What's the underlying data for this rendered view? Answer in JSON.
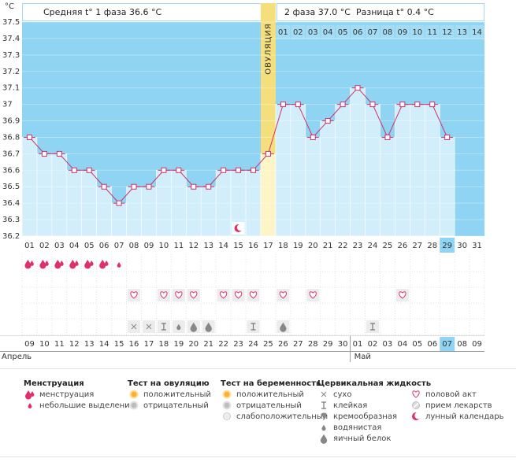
{
  "unit": "°C",
  "header": {
    "phase1": "Средняя t° 1 фаза 36.6 °C",
    "phase2": "2 фаза 37.0 °C",
    "difference": "Разница t° 0.4 °C"
  },
  "chart_data": {
    "type": "line",
    "categories": [
      "01",
      "02",
      "03",
      "04",
      "05",
      "06",
      "07",
      "08",
      "09",
      "10",
      "11",
      "12",
      "13",
      "14",
      "15",
      "16",
      "17",
      "18",
      "19",
      "20",
      "21",
      "22",
      "23",
      "24",
      "25",
      "26",
      "27",
      "28",
      "29",
      "30",
      "31"
    ],
    "values": [
      36.8,
      36.7,
      36.7,
      36.6,
      36.6,
      36.5,
      36.4,
      36.5,
      36.5,
      36.6,
      36.6,
      36.5,
      36.5,
      36.6,
      36.6,
      36.6,
      36.7,
      37.0,
      37.0,
      36.8,
      36.9,
      37.0,
      37.1,
      37.0,
      36.8,
      37.0,
      37.0,
      37.0,
      36.8,
      null,
      null
    ],
    "color": "#d0306a",
    "ylim": [
      36.2,
      37.5
    ],
    "yticks": [
      36.2,
      36.3,
      36.4,
      36.5,
      36.6,
      36.7,
      36.8,
      36.9,
      37,
      37.1,
      37.2,
      37.3,
      37.4,
      37.5
    ],
    "grid": true,
    "ovulation_label": "ОВУЛЯЦИЯ",
    "ovulation_day": "17",
    "today": "29",
    "phase2_days": [
      "01",
      "02",
      "03",
      "04",
      "05",
      "06",
      "07",
      "08",
      "09",
      "10",
      "11",
      "12",
      "13",
      "14"
    ],
    "dates": [
      "09",
      "10",
      "11",
      "12",
      "13",
      "14",
      "15",
      "16",
      "17",
      "18",
      "19",
      "20",
      "21",
      "22",
      "23",
      "24",
      "25",
      "26",
      "27",
      "28",
      "29",
      "30",
      "01",
      "02",
      "03",
      "04",
      "05",
      "06",
      "07",
      "08",
      "09"
    ],
    "date_colors": [
      "#333",
      "#333",
      "#333",
      "#e0003c",
      "#e0003c",
      "#333",
      "#333",
      "#333",
      "#333",
      "#333",
      "#e0003c",
      "#e0003c",
      "#333",
      "#333",
      "#333",
      "#333",
      "#333",
      "#e0003c",
      "#e0003c",
      "#333",
      "#333",
      "#333",
      "#333",
      "#333",
      "#e0003c",
      "#e0003c",
      "#333",
      "#333",
      "#333",
      "#333",
      "#333"
    ],
    "months": [
      "Апрель",
      "Май"
    ]
  },
  "legend": [
    {
      "title": "Менструация",
      "items": [
        "менструация",
        "небольшие выделения"
      ]
    },
    {
      "title": "Тест на овуляцию",
      "items": [
        "положительный",
        "отрицательный"
      ]
    },
    {
      "title": "Тест на беременность",
      "items": [
        "положительный",
        "отрицательный",
        "слабоположительный"
      ]
    },
    {
      "title": "Цервикальная жидкость",
      "items": [
        "сухо",
        "клейкая",
        "кремообразная",
        "водянистая",
        "яичный белок"
      ]
    },
    {
      "items": [
        "половой акт",
        "прием лекарств",
        "лунный календарь"
      ]
    }
  ]
}
